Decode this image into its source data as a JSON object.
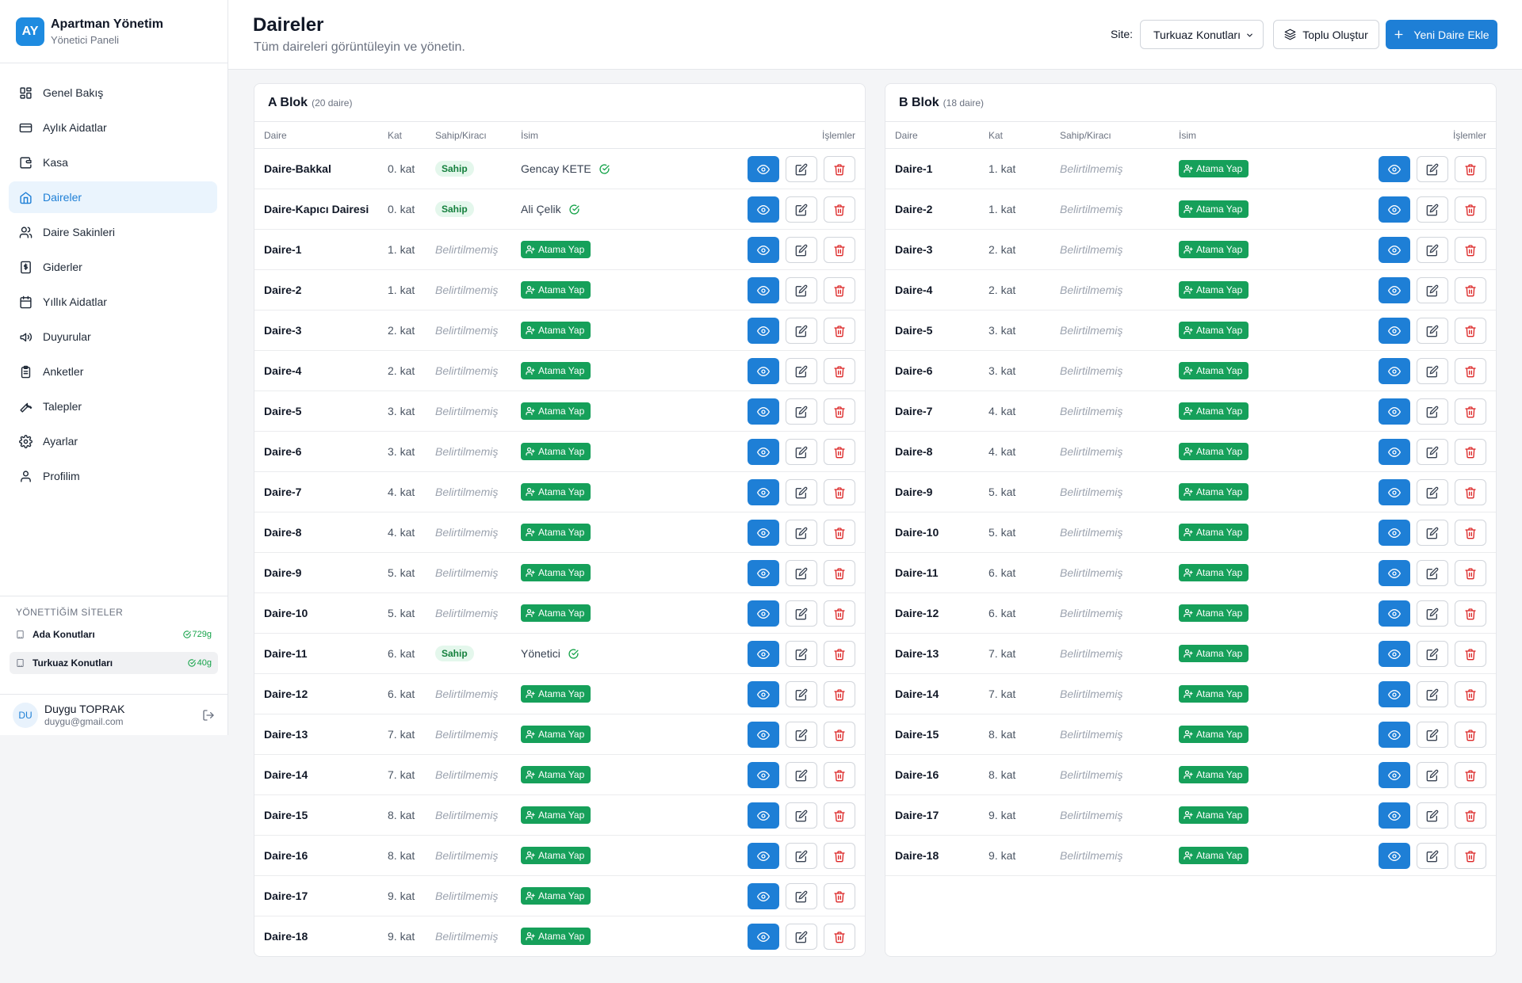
{
  "brand": {
    "logo": "AY",
    "title": "Apartman Yönetim",
    "subtitle": "Yönetici Paneli"
  },
  "nav": [
    {
      "label": "Genel Bakış",
      "icon": "grid-icon",
      "active": false
    },
    {
      "label": "Aylık Aidatlar",
      "icon": "credit-card-icon",
      "active": false
    },
    {
      "label": "Kasa",
      "icon": "wallet-icon",
      "active": false
    },
    {
      "label": "Daireler",
      "icon": "home-icon",
      "active": true
    },
    {
      "label": "Daire Sakinleri",
      "icon": "users-icon",
      "active": false
    },
    {
      "label": "Giderler",
      "icon": "receipt-icon",
      "active": false
    },
    {
      "label": "Yıllık Aidatlar",
      "icon": "calendar-icon",
      "active": false
    },
    {
      "label": "Duyurular",
      "icon": "megaphone-icon",
      "active": false
    },
    {
      "label": "Anketler",
      "icon": "clipboard-icon",
      "active": false
    },
    {
      "label": "Talepler",
      "icon": "wrench-icon",
      "active": false
    },
    {
      "label": "Ayarlar",
      "icon": "gear-icon",
      "active": false
    },
    {
      "label": "Profilim",
      "icon": "user-icon",
      "active": false
    }
  ],
  "sites": {
    "title": "YÖNETTİĞİM SİTELER",
    "items": [
      {
        "name": "Ada Konutları",
        "days": "729g",
        "active": false
      },
      {
        "name": "Turkuaz Konutları",
        "days": "40g",
        "active": true
      }
    ]
  },
  "user": {
    "initials": "DU",
    "name": "Duygu TOPRAK",
    "email": "duygu@gmail.com"
  },
  "header": {
    "title": "Daireler",
    "subtitle": "Tüm daireleri görüntüleyin ve yönetin.",
    "site_label": "Site:",
    "site_value": "Turkuaz Konutları",
    "bulk_button": "Toplu Oluştur",
    "add_button": "Yeni Daire Ekle"
  },
  "columns": {
    "daire": "Daire",
    "kat": "Kat",
    "sahip": "Sahip/Kiracı",
    "isim": "İsim",
    "islemler": "İşlemler"
  },
  "labels": {
    "unassigned": "Belirtilmemiş",
    "assign": "Atama Yap",
    "owner_badge": "Sahip"
  },
  "colors": {
    "primary": "#1e7fd6",
    "success": "#16a05a",
    "danger": "#dc2626"
  },
  "blocks": [
    {
      "name": "A Blok",
      "count": "(20 daire)",
      "rows": [
        {
          "daire": "Daire-Bakkal",
          "kat": "0. kat",
          "sahip": "Sahip",
          "isim": "Gencay KETE"
        },
        {
          "daire": "Daire-Kapıcı Dairesi",
          "kat": "0. kat",
          "sahip": "Sahip",
          "isim": "Ali Çelik"
        },
        {
          "daire": "Daire-1",
          "kat": "1. kat",
          "sahip": null,
          "isim": null
        },
        {
          "daire": "Daire-2",
          "kat": "1. kat",
          "sahip": null,
          "isim": null
        },
        {
          "daire": "Daire-3",
          "kat": "2. kat",
          "sahip": null,
          "isim": null
        },
        {
          "daire": "Daire-4",
          "kat": "2. kat",
          "sahip": null,
          "isim": null
        },
        {
          "daire": "Daire-5",
          "kat": "3. kat",
          "sahip": null,
          "isim": null
        },
        {
          "daire": "Daire-6",
          "kat": "3. kat",
          "sahip": null,
          "isim": null
        },
        {
          "daire": "Daire-7",
          "kat": "4. kat",
          "sahip": null,
          "isim": null
        },
        {
          "daire": "Daire-8",
          "kat": "4. kat",
          "sahip": null,
          "isim": null
        },
        {
          "daire": "Daire-9",
          "kat": "5. kat",
          "sahip": null,
          "isim": null
        },
        {
          "daire": "Daire-10",
          "kat": "5. kat",
          "sahip": null,
          "isim": null
        },
        {
          "daire": "Daire-11",
          "kat": "6. kat",
          "sahip": "Sahip",
          "isim": "Yönetici"
        },
        {
          "daire": "Daire-12",
          "kat": "6. kat",
          "sahip": null,
          "isim": null
        },
        {
          "daire": "Daire-13",
          "kat": "7. kat",
          "sahip": null,
          "isim": null
        },
        {
          "daire": "Daire-14",
          "kat": "7. kat",
          "sahip": null,
          "isim": null
        },
        {
          "daire": "Daire-15",
          "kat": "8. kat",
          "sahip": null,
          "isim": null
        },
        {
          "daire": "Daire-16",
          "kat": "8. kat",
          "sahip": null,
          "isim": null
        },
        {
          "daire": "Daire-17",
          "kat": "9. kat",
          "sahip": null,
          "isim": null
        },
        {
          "daire": "Daire-18",
          "kat": "9. kat",
          "sahip": null,
          "isim": null
        }
      ]
    },
    {
      "name": "B Blok",
      "count": "(18 daire)",
      "rows": [
        {
          "daire": "Daire-1",
          "kat": "1. kat",
          "sahip": null,
          "isim": null
        },
        {
          "daire": "Daire-2",
          "kat": "1. kat",
          "sahip": null,
          "isim": null
        },
        {
          "daire": "Daire-3",
          "kat": "2. kat",
          "sahip": null,
          "isim": null
        },
        {
          "daire": "Daire-4",
          "kat": "2. kat",
          "sahip": null,
          "isim": null
        },
        {
          "daire": "Daire-5",
          "kat": "3. kat",
          "sahip": null,
          "isim": null
        },
        {
          "daire": "Daire-6",
          "kat": "3. kat",
          "sahip": null,
          "isim": null
        },
        {
          "daire": "Daire-7",
          "kat": "4. kat",
          "sahip": null,
          "isim": null
        },
        {
          "daire": "Daire-8",
          "kat": "4. kat",
          "sahip": null,
          "isim": null
        },
        {
          "daire": "Daire-9",
          "kat": "5. kat",
          "sahip": null,
          "isim": null
        },
        {
          "daire": "Daire-10",
          "kat": "5. kat",
          "sahip": null,
          "isim": null
        },
        {
          "daire": "Daire-11",
          "kat": "6. kat",
          "sahip": null,
          "isim": null
        },
        {
          "daire": "Daire-12",
          "kat": "6. kat",
          "sahip": null,
          "isim": null
        },
        {
          "daire": "Daire-13",
          "kat": "7. kat",
          "sahip": null,
          "isim": null
        },
        {
          "daire": "Daire-14",
          "kat": "7. kat",
          "sahip": null,
          "isim": null
        },
        {
          "daire": "Daire-15",
          "kat": "8. kat",
          "sahip": null,
          "isim": null
        },
        {
          "daire": "Daire-16",
          "kat": "8. kat",
          "sahip": null,
          "isim": null
        },
        {
          "daire": "Daire-17",
          "kat": "9. kat",
          "sahip": null,
          "isim": null
        },
        {
          "daire": "Daire-18",
          "kat": "9. kat",
          "sahip": null,
          "isim": null
        }
      ]
    }
  ]
}
